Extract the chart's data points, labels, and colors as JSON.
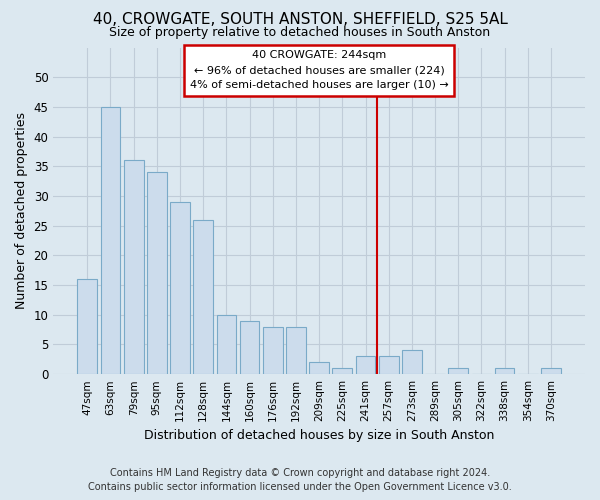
{
  "title": "40, CROWGATE, SOUTH ANSTON, SHEFFIELD, S25 5AL",
  "subtitle": "Size of property relative to detached houses in South Anston",
  "xlabel": "Distribution of detached houses by size in South Anston",
  "ylabel": "Number of detached properties",
  "footer_line1": "Contains HM Land Registry data © Crown copyright and database right 2024.",
  "footer_line2": "Contains public sector information licensed under the Open Government Licence v3.0.",
  "categories": [
    "47sqm",
    "63sqm",
    "79sqm",
    "95sqm",
    "112sqm",
    "128sqm",
    "144sqm",
    "160sqm",
    "176sqm",
    "192sqm",
    "209sqm",
    "225sqm",
    "241sqm",
    "257sqm",
    "273sqm",
    "289sqm",
    "305sqm",
    "322sqm",
    "338sqm",
    "354sqm",
    "370sqm"
  ],
  "values": [
    16,
    45,
    36,
    34,
    29,
    26,
    10,
    9,
    8,
    8,
    2,
    1,
    3,
    3,
    4,
    0,
    1,
    0,
    1,
    0,
    1
  ],
  "bar_color": "#ccdcec",
  "bar_edge_color": "#7aaac8",
  "grid_color": "#c0ccd8",
  "background_color": "#dce8f0",
  "vline_x": 12.5,
  "vline_color": "#cc0000",
  "annotation_line1": "40 CROWGATE: 244sqm",
  "annotation_line2": "← 96% of detached houses are smaller (224)",
  "annotation_line3": "4% of semi-detached houses are larger (10) →",
  "annotation_box_edgecolor": "#cc0000",
  "ylim": [
    0,
    55
  ],
  "yticks": [
    0,
    5,
    10,
    15,
    20,
    25,
    30,
    35,
    40,
    45,
    50
  ],
  "title_fontsize": 11,
  "subtitle_fontsize": 9,
  "ylabel_fontsize": 9,
  "xlabel_fontsize": 9,
  "tick_fontsize": 8.5,
  "xtick_fontsize": 7.5,
  "footer_fontsize": 7
}
